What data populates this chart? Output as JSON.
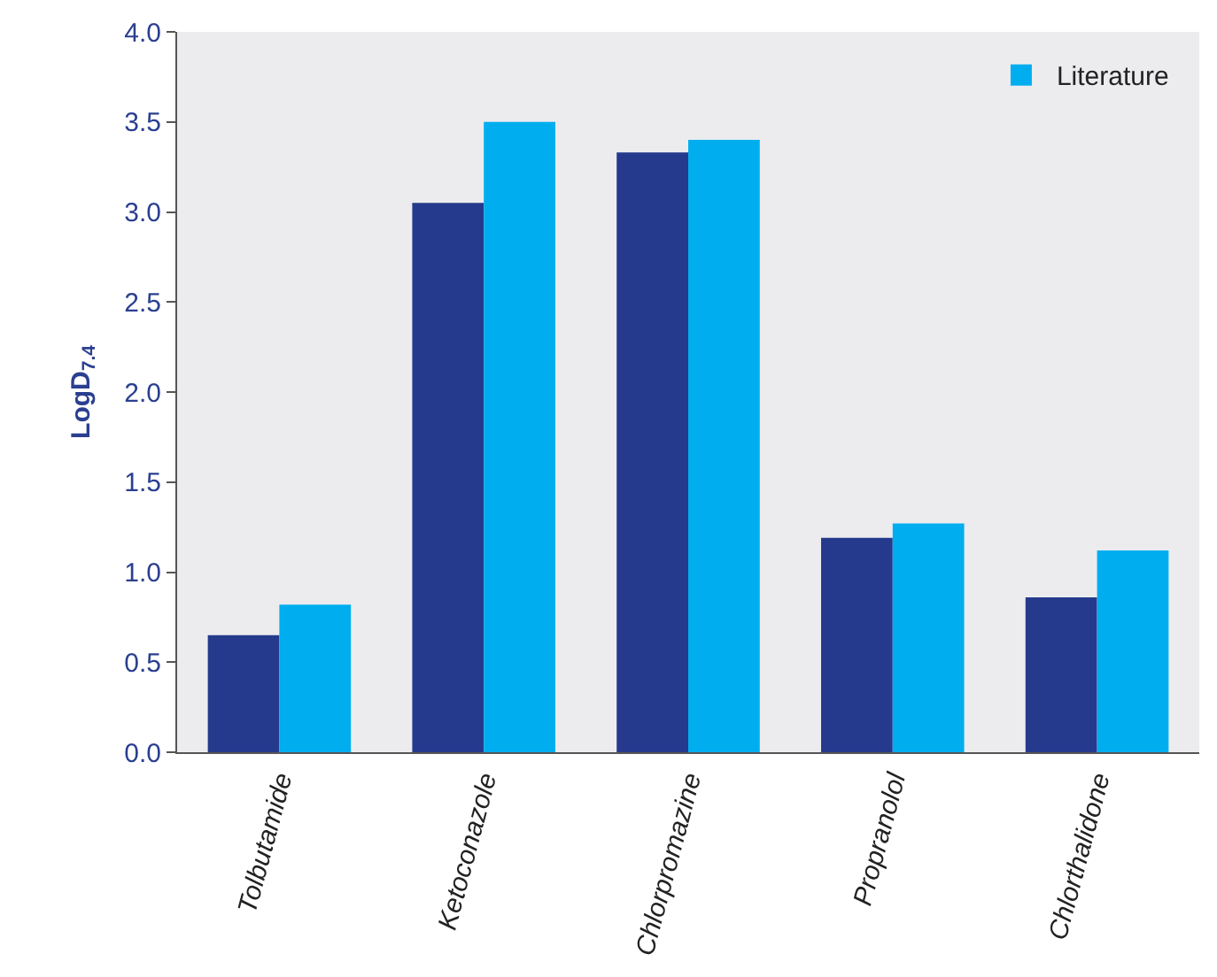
{
  "chart_data": {
    "type": "bar",
    "ylabel": "LogD$_{7.4}$",
    "categories": [
      "Tolbutamide",
      "Ketoconazole",
      "Chlorpromazine",
      "Propranolol",
      "Chlorthalidone"
    ],
    "series": [
      {
        "color": "#253a8c",
        "values": [
          0.65,
          3.05,
          3.33,
          1.19,
          0.86
        ]
      },
      {
        "name": "Literature",
        "color": "#00aeef",
        "values": [
          0.82,
          3.5,
          3.4,
          1.27,
          1.12
        ]
      }
    ],
    "ylim": [
      0,
      4
    ],
    "yticks": [
      {
        "value": 0,
        "label": "0.0"
      },
      {
        "value": 0.5,
        "label": "0.5"
      },
      {
        "value": 1,
        "label": "1.0"
      },
      {
        "value": 1.5,
        "label": "1.5"
      },
      {
        "value": 2,
        "label": "2.0"
      },
      {
        "value": 2.5,
        "label": "2.5"
      },
      {
        "value": 3,
        "label": "3.0"
      },
      {
        "value": 3.5,
        "label": "3.5"
      },
      {
        "value": 4,
        "label": "4.0"
      }
    ],
    "grid": false,
    "legend": "top right"
  }
}
